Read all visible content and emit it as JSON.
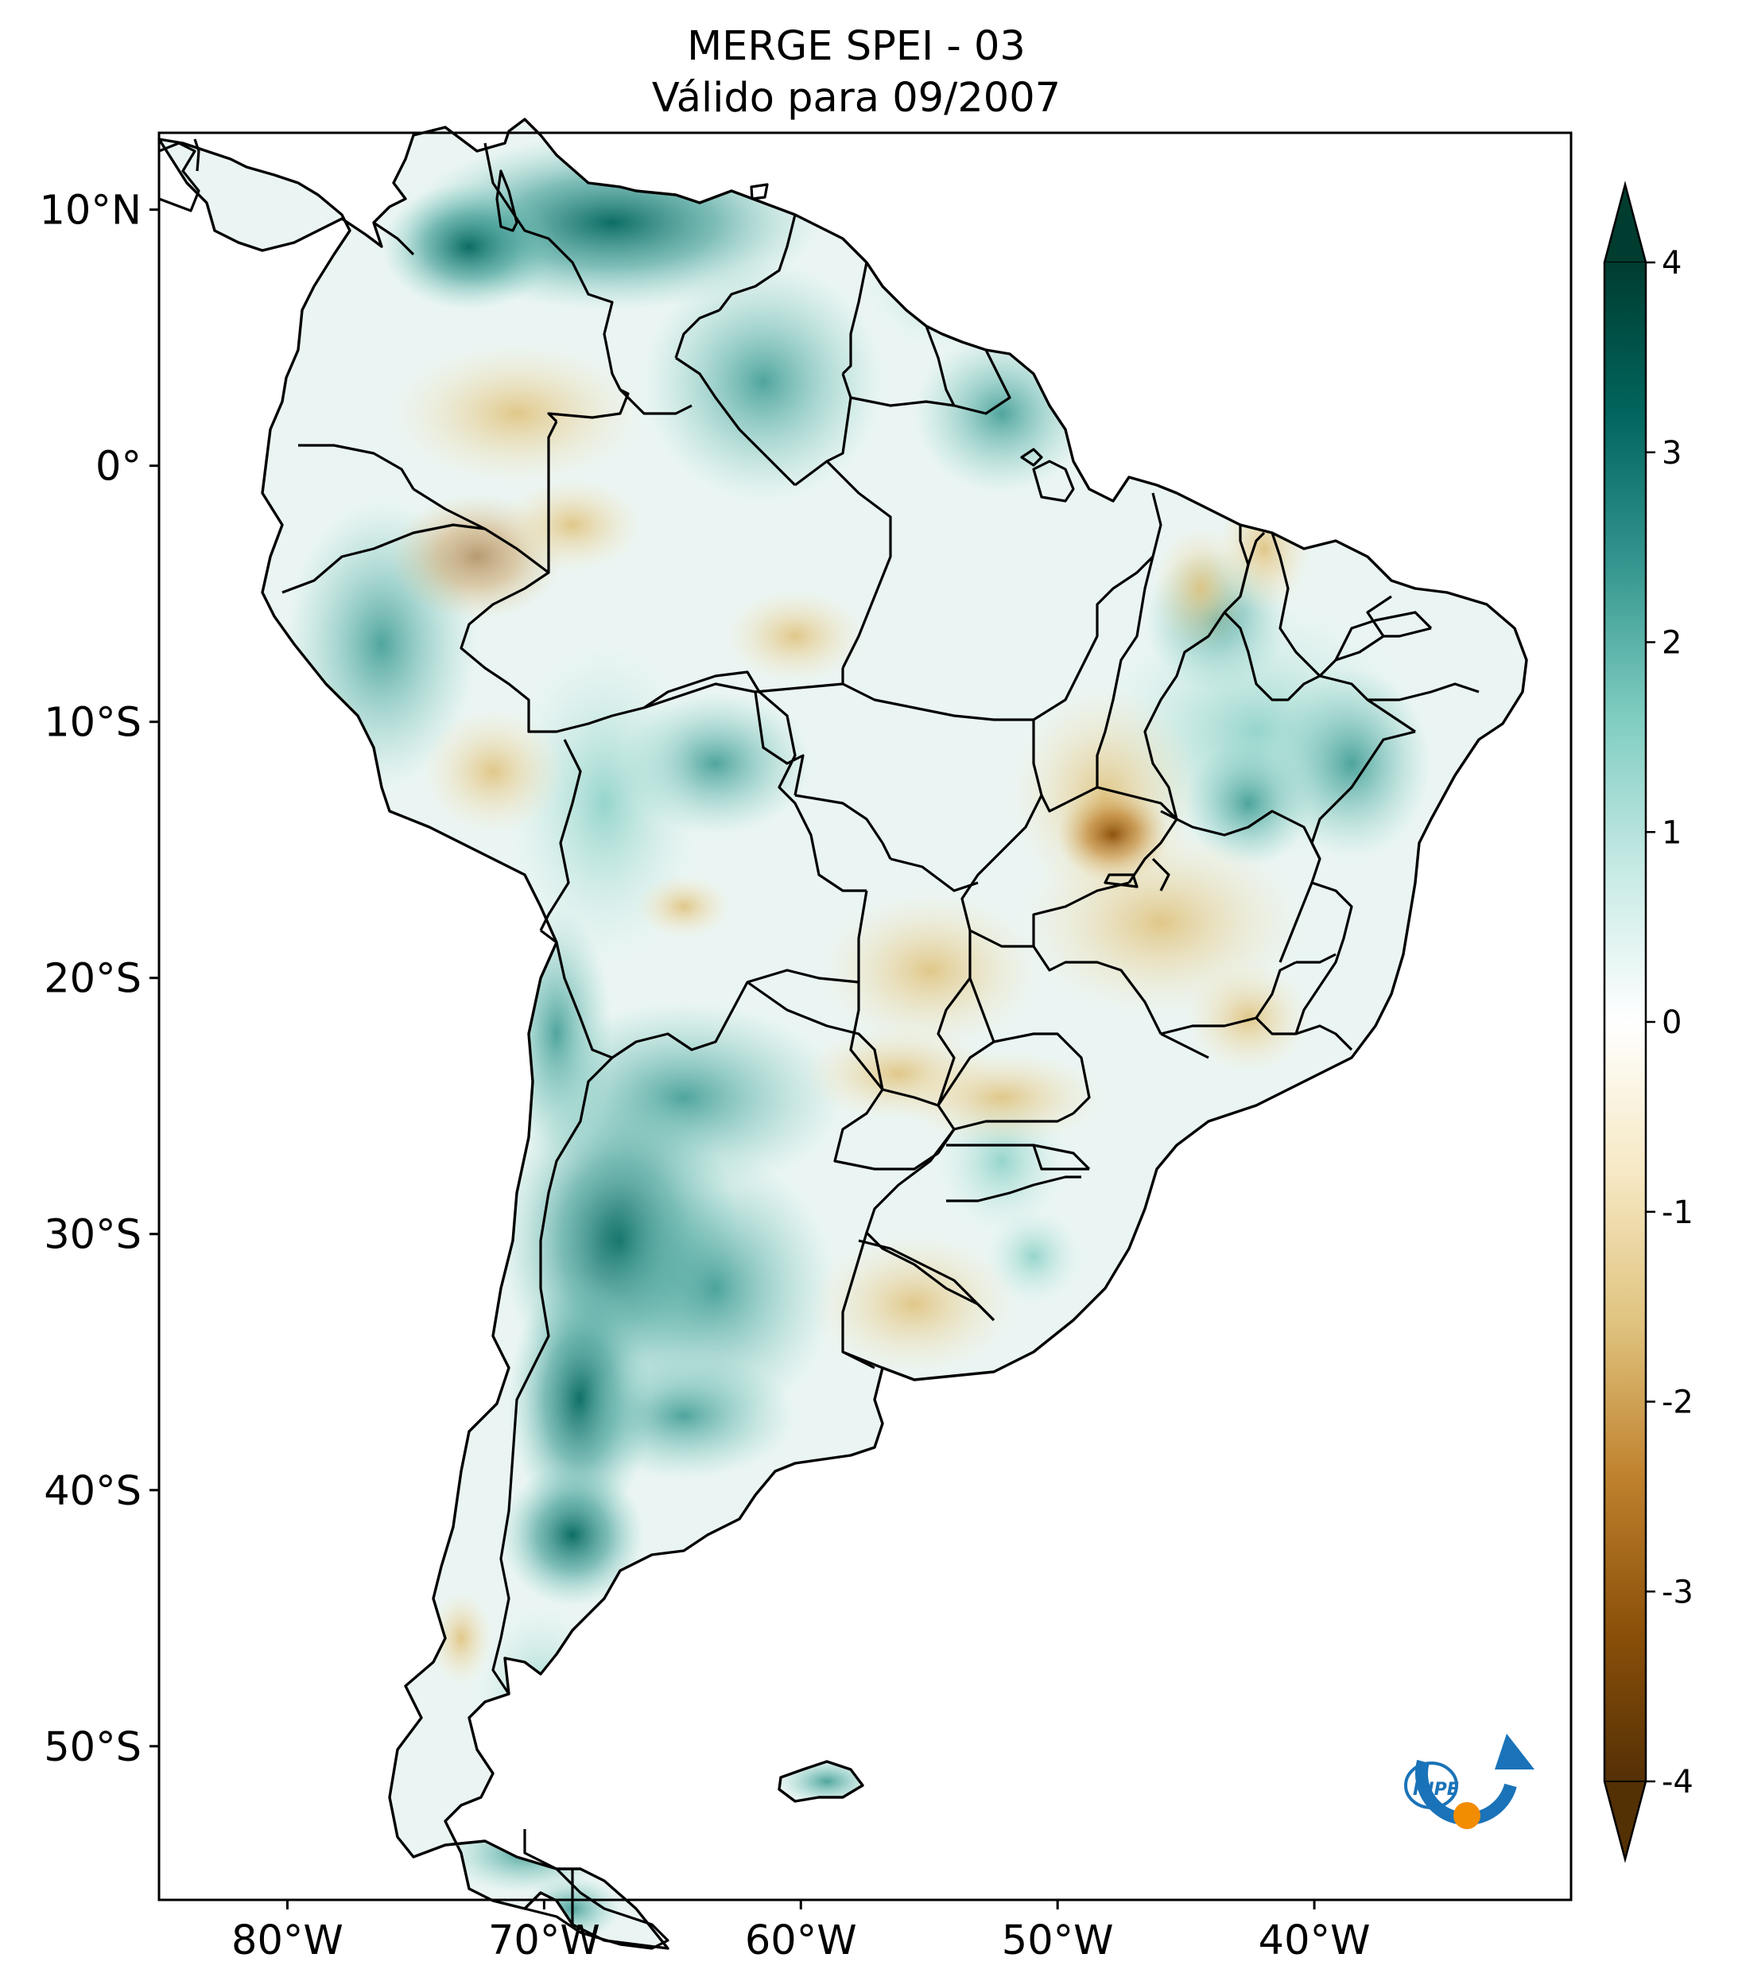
{
  "title": {
    "line1": "MERGE   SPEI - 03",
    "line2": "Válido para 09/2007"
  },
  "map": {
    "variable": "SPEI - 03",
    "lon_range": [
      -85,
      -30
    ],
    "lat_range": [
      -56,
      13
    ],
    "lon_ticks": [
      {
        "value": -80,
        "label": "80°W"
      },
      {
        "value": -70,
        "label": "70°W"
      },
      {
        "value": -60,
        "label": "60°W"
      },
      {
        "value": -50,
        "label": "50°W"
      },
      {
        "value": -40,
        "label": "40°W"
      }
    ],
    "lat_ticks": [
      {
        "value": 10,
        "label": "10°N"
      },
      {
        "value": 0,
        "label": "0°"
      },
      {
        "value": -10,
        "label": "10°S"
      },
      {
        "value": -20,
        "label": "20°S"
      },
      {
        "value": -30,
        "label": "30°S"
      },
      {
        "value": -40,
        "label": "40°S"
      },
      {
        "value": -50,
        "label": "50°S"
      }
    ]
  },
  "colorbar": {
    "min": -4,
    "max": 4,
    "extend": "both",
    "ticks": [
      "4",
      "3",
      "2",
      "1",
      "0",
      "-1",
      "-2",
      "-3",
      "-4"
    ],
    "colors": [
      "#543005",
      "#8c510a",
      "#bf812d",
      "#dfc27d",
      "#f6e8c3",
      "#ffffff",
      "#c7eae5",
      "#80cdc1",
      "#35978f",
      "#01665e",
      "#003c30"
    ]
  },
  "colors": {
    "wet": "#4fb3a6",
    "very_wet": "#01665e",
    "dry": "#dfc27d",
    "very_dry": "#8c510a",
    "logo_blue": "#1a73b8",
    "logo_orange": "#f28c00"
  },
  "logo": {
    "text": "INPE"
  }
}
